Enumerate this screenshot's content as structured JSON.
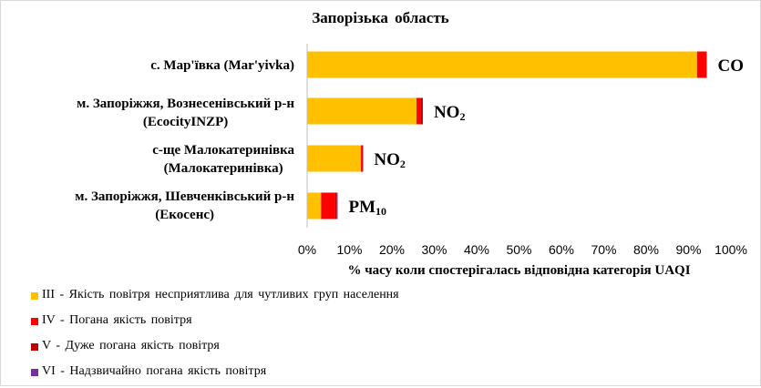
{
  "chart_data": {
    "type": "bar",
    "orientation": "horizontal",
    "stacked": true,
    "title": "Запорізька  область",
    "xlabel": "% часу коли спостерігалась відповідна категорія UAQI",
    "xlim": [
      0,
      100
    ],
    "xticks": [
      "0%",
      "10%",
      "20%",
      "30%",
      "40%",
      "50%",
      "60%",
      "70%",
      "80%",
      "90%",
      "100%"
    ],
    "grid": false,
    "legend_position": "bottom",
    "categories": [
      [
        "с. Мар'ївка (Mar'yivka)"
      ],
      [
        "м. Запоріжжя, Вознесенівський р-н",
        "(EcocityINZP)"
      ],
      [
        "с-ще Малокатеринівка",
        "(Малокатеринівка)"
      ],
      [
        "м. Запоріжжя, Шевченківський р-н",
        "(Екосенс)"
      ]
    ],
    "pollutants": [
      {
        "main": "CO",
        "sub": ""
      },
      {
        "main": "NO",
        "sub": "2"
      },
      {
        "main": "NO",
        "sub": "2"
      },
      {
        "main": "PM",
        "sub": "10"
      }
    ],
    "series": [
      {
        "name": "ІІІ - Якість повітря  несприятлива  для чутливих  груп  населення",
        "color": "#ffc000",
        "values": [
          92.0,
          25.8,
          12.7,
          3.3
        ]
      },
      {
        "name": "IV - Погана якість повітря",
        "color": "#ff0000",
        "values": [
          2.3,
          0.9,
          0.3,
          3.2
        ]
      },
      {
        "name": "V - Дуже погана  якість повітря",
        "color": "#c00000",
        "values": [
          0.0,
          0.6,
          0.2,
          0.4
        ]
      },
      {
        "name": "VI - Надзвичайно  погана  якість повітря",
        "color": "#7030a0",
        "values": [
          0.0,
          0.0,
          0.0,
          0.3
        ]
      }
    ]
  }
}
